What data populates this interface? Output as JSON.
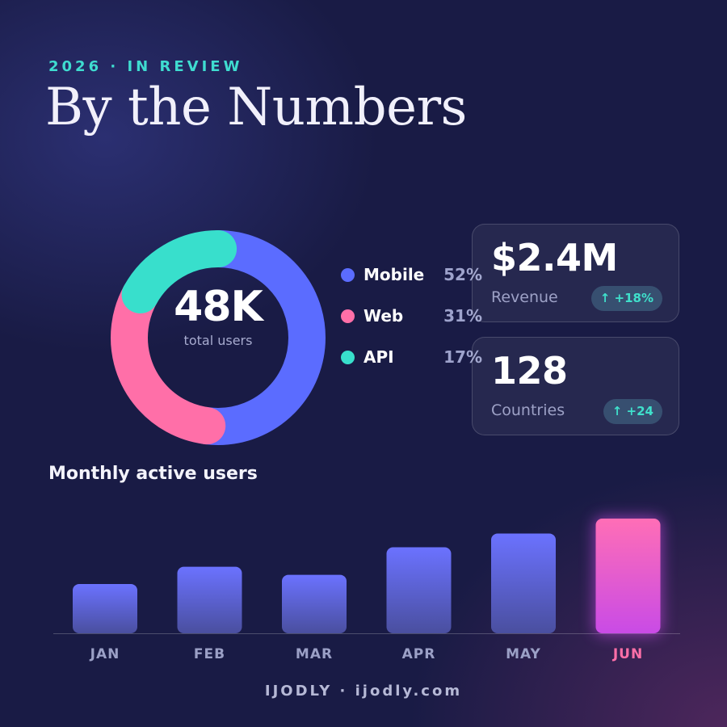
{
  "header": {
    "eyebrow": "2026 · IN REVIEW",
    "title": "By the Numbers"
  },
  "colors": {
    "accent": "#3fdcd0",
    "mobile": "#5b6cff",
    "web": "#ff6fa8",
    "api": "#38dfcc",
    "bar_top": "#6b72ff",
    "bar_bottom": "#4a4f9f",
    "highlight_top": "#ff6eb6",
    "highlight_bottom": "#c94be6",
    "highlight_label": "#ff6fa8"
  },
  "donut": {
    "value": "48K",
    "caption": "total users"
  },
  "metrics": [
    {
      "value": "$2.4M",
      "label": "Revenue",
      "badge": "↑ +18%",
      "badge_icon": "up-arrow-icon"
    },
    {
      "value": "128",
      "label": "Countries",
      "badge": "↑ +24",
      "badge_icon": "up-arrow-icon"
    }
  ],
  "bars_section": {
    "title": "Monthly active users"
  },
  "chart_data": [
    {
      "type": "pie",
      "variant": "donut",
      "categories": [
        "Mobile",
        "Web",
        "API"
      ],
      "values": [
        52,
        31,
        17
      ],
      "labels": [
        "52%",
        "31%",
        "17%"
      ],
      "colors": [
        "#5b6cff",
        "#ff6fa8",
        "#38dfcc"
      ],
      "legend": "right"
    },
    {
      "type": "bar",
      "categories": [
        "JAN",
        "FEB",
        "MAR",
        "APR",
        "MAY",
        "JUN"
      ],
      "values": [
        43,
        58,
        51,
        75,
        87,
        100
      ],
      "highlight": "JUN",
      "ylim": [
        0,
        100
      ],
      "grid": false
    }
  ],
  "footer": {
    "text": "IJODLY · ijodly.com"
  }
}
